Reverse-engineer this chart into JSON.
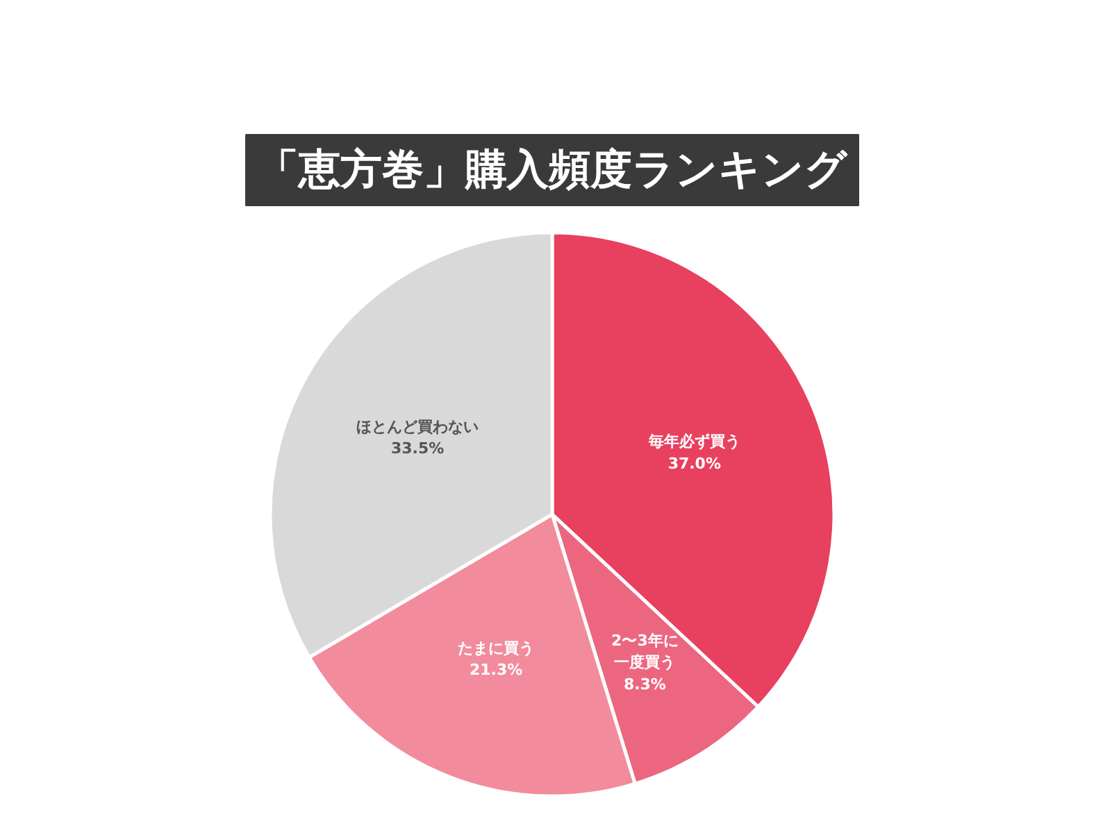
{
  "chart_data": {
    "type": "pie",
    "title": "「恵方巻」購入頻度ランキング",
    "categories": [
      "毎年必ず買う",
      "2〜3年に一度買う",
      "たまに買う",
      "ほとんど買わない"
    ],
    "values": [
      37.0,
      8.3,
      21.3,
      33.5
    ],
    "value_labels": [
      "37.0%",
      "8.3%",
      "21.3%",
      "33.5%"
    ],
    "colors": [
      "#e8405f",
      "#ec6680",
      "#f28b9c",
      "#d9d9d9"
    ]
  }
}
